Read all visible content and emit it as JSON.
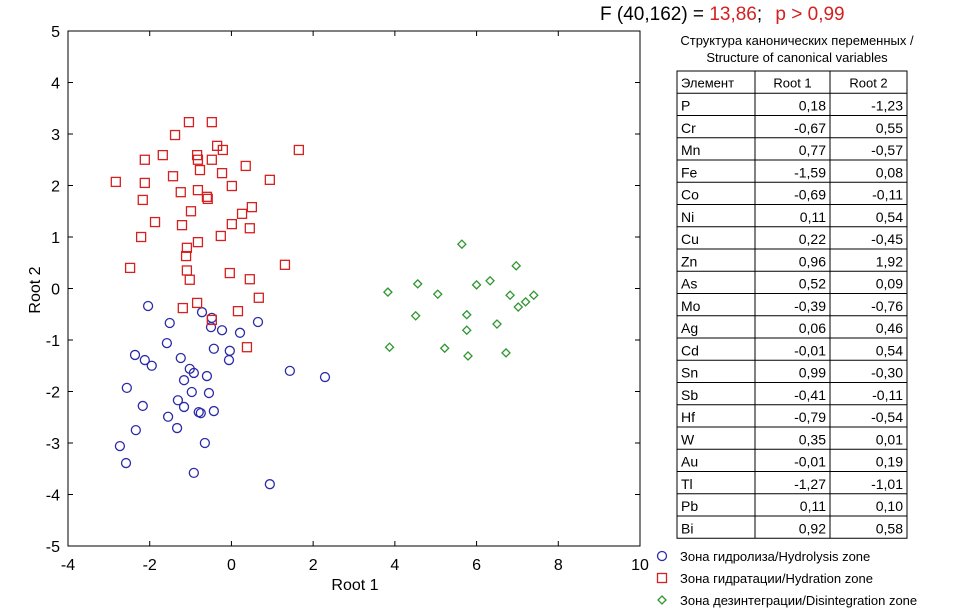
{
  "header": {
    "f_label": "F (40,162) =",
    "f_value": "13,86",
    "separator": ";",
    "p": "p > 0,99"
  },
  "chart_data": {
    "type": "scatter",
    "xlabel": "Root 1",
    "ylabel": "Root 2",
    "xlim": [
      -4,
      10
    ],
    "ylim": [
      -5,
      5
    ],
    "xticks": [
      -4,
      -2,
      0,
      2,
      4,
      6,
      8,
      10
    ],
    "yticks": [
      -5,
      -4,
      -3,
      -2,
      -1,
      0,
      1,
      2,
      3,
      4,
      5
    ],
    "series": [
      {
        "name": "Зона гидролиза/Hydrolysis zone",
        "color": "#2b2ba8",
        "marker": "circle",
        "x": [
          -2.04,
          -1.51,
          -0.48,
          -0.23,
          -0.72,
          0.21,
          0.65,
          -0.5,
          -1.58,
          -0.43,
          -0.04,
          -2.36,
          -2.12,
          -1.95,
          -1.24,
          -0.06,
          -1.02,
          -0.92,
          -0.6,
          -1.16,
          -0.97,
          -0.55,
          -2.56,
          -2.17,
          -1.31,
          -1.16,
          -1.55,
          -1.33,
          -0.8,
          -0.75,
          -0.43,
          -2.34,
          -0.65,
          -2.73,
          -2.58,
          -0.92,
          0.94,
          1.43,
          2.29
        ],
        "values": [
          -0.34,
          -0.67,
          -0.57,
          -0.81,
          -0.46,
          -0.86,
          -0.65,
          -0.75,
          -1.06,
          -1.17,
          -1.21,
          -1.29,
          -1.39,
          -1.5,
          -1.35,
          -1.39,
          -1.56,
          -1.64,
          -1.7,
          -1.78,
          -2.01,
          -2.03,
          -1.93,
          -2.28,
          -2.17,
          -2.3,
          -2.49,
          -2.71,
          -2.4,
          -2.42,
          -2.38,
          -2.75,
          -3.0,
          -3.06,
          -3.39,
          -3.58,
          -3.8,
          -1.6,
          -1.72
        ]
      },
      {
        "name": "Зона гидратации/Hydration zone",
        "color": "#d42020",
        "marker": "square",
        "x": [
          -2.83,
          -2.12,
          -1.38,
          -1.68,
          -1.04,
          -0.48,
          -2.12,
          -1.43,
          -0.84,
          -0.82,
          -0.77,
          -0.48,
          -0.35,
          -0.21,
          -0.23,
          0.35,
          0.94,
          1.65,
          -2.17,
          -1.24,
          -0.82,
          -0.6,
          0.01,
          0.5,
          -0.99,
          -1.87,
          -2.21,
          -1.21,
          -0.82,
          -0.26,
          0.01,
          0.26,
          0.45,
          -1.09,
          -1.11,
          -1.09,
          -1.02,
          -2.48,
          -0.04,
          0.45,
          1.31,
          -1.19,
          -0.84,
          -0.48,
          0.16,
          0.67,
          0.38,
          -0.58
        ],
        "values": [
          2.07,
          2.5,
          2.98,
          2.59,
          3.23,
          3.23,
          2.05,
          2.18,
          2.59,
          2.5,
          2.3,
          2.5,
          2.77,
          2.69,
          2.24,
          2.38,
          2.11,
          2.69,
          1.72,
          1.87,
          1.91,
          1.78,
          1.99,
          1.58,
          1.5,
          1.29,
          1.0,
          1.23,
          0.9,
          1.02,
          1.25,
          1.45,
          1.17,
          0.79,
          0.63,
          0.35,
          0.17,
          0.4,
          0.3,
          0.18,
          0.46,
          -0.38,
          -0.28,
          -0.61,
          -0.44,
          -0.18,
          -1.14,
          1.74
        ]
      },
      {
        "name": "Зона дезинтеграции/Disintegration zone",
        "color": "#2f962f",
        "marker": "diamond",
        "x": [
          5.64,
          3.83,
          4.56,
          5.05,
          4.51,
          3.87,
          5.22,
          5.76,
          5.76,
          5.79,
          6.0,
          6.33,
          6.5,
          6.72,
          6.82,
          6.97,
          7.02,
          7.2,
          7.4
        ],
        "values": [
          0.86,
          -0.07,
          0.09,
          -0.11,
          -0.53,
          -1.14,
          -1.16,
          -0.51,
          -0.81,
          -1.31,
          0.07,
          0.15,
          -0.69,
          -1.25,
          -0.13,
          0.44,
          -0.36,
          -0.26,
          -0.13
        ]
      }
    ]
  },
  "table": {
    "title": [
      "Структура канонических переменных /",
      "Structure of canonical variables"
    ],
    "columns": [
      "Элемент",
      "Root 1",
      "Root 2"
    ],
    "rows": [
      [
        "P",
        "0,18",
        "-1,23"
      ],
      [
        "Cr",
        "-0,67",
        "0,55"
      ],
      [
        "Mn",
        "0,77",
        "-0,57"
      ],
      [
        "Fe",
        "-1,59",
        "0,08"
      ],
      [
        "Co",
        "-0,69",
        "-0,11"
      ],
      [
        "Ni",
        "0,11",
        "0,54"
      ],
      [
        "Cu",
        "0,22",
        "-0,45"
      ],
      [
        "Zn",
        "0,96",
        "1,92"
      ],
      [
        "As",
        "0,52",
        "0,09"
      ],
      [
        "Mo",
        "-0,39",
        "-0,76"
      ],
      [
        "Ag",
        "0,06",
        "0,46"
      ],
      [
        "Cd",
        "-0,01",
        "0,54"
      ],
      [
        "Sn",
        "0,99",
        "-0,30"
      ],
      [
        "Sb",
        "-0,41",
        "-0,11"
      ],
      [
        "Hf",
        "-0,79",
        "-0,54"
      ],
      [
        "W",
        "0,35",
        "0,01"
      ],
      [
        "Au",
        "-0,01",
        "0,19"
      ],
      [
        "Tl",
        "-1,27",
        "-1,01"
      ],
      [
        "Pb",
        "0,11",
        "0,10"
      ],
      [
        "Bi",
        "0,92",
        "0,58"
      ]
    ]
  }
}
